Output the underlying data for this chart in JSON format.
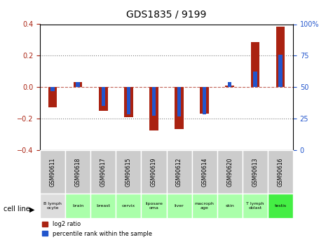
{
  "title": "GDS1835 / 9199",
  "samples": [
    "GSM90611",
    "GSM90618",
    "GSM90617",
    "GSM90615",
    "GSM90619",
    "GSM90612",
    "GSM90614",
    "GSM90620",
    "GSM90613",
    "GSM90616"
  ],
  "cell_lines": [
    "B lymph\nocyte",
    "brain",
    "breast",
    "cervix",
    "liposare\noma",
    "liver",
    "macroph\nage",
    "skin",
    "T lymph\noblast",
    "testis"
  ],
  "log2_ratio": [
    -0.13,
    0.03,
    -0.15,
    -0.19,
    -0.275,
    -0.265,
    -0.17,
    0.01,
    0.285,
    0.385
  ],
  "percentile_rank": [
    -0.025,
    0.03,
    -0.12,
    -0.175,
    -0.18,
    -0.185,
    -0.175,
    0.03,
    0.1,
    0.205
  ],
  "red_color": "#aa2211",
  "blue_color": "#2255cc",
  "sample_bg": "#cccccc",
  "cell_line_bg": [
    "#dddddd",
    "#aaffaa",
    "#aaffaa",
    "#aaffaa",
    "#aaffaa",
    "#aaffaa",
    "#aaffaa",
    "#aaffaa",
    "#aaffaa",
    "#44ee44"
  ],
  "ylim": [
    -0.4,
    0.4
  ],
  "y2lim": [
    0,
    100
  ],
  "yticks": [
    -0.4,
    -0.2,
    0.0,
    0.2,
    0.4
  ],
  "y2ticks": [
    0,
    25,
    50,
    75,
    100
  ],
  "bar_width": 0.35,
  "blue_bar_width": 0.15
}
